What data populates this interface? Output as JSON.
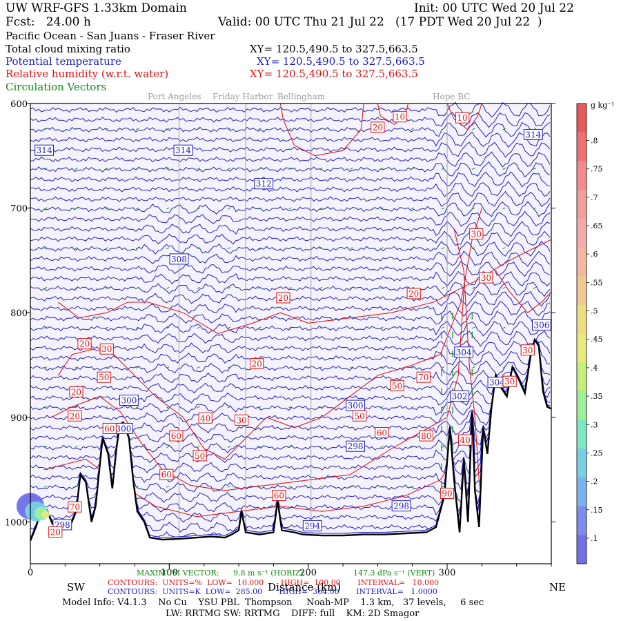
{
  "header": {
    "title": "UW WRF-GFS 1.33km Domain",
    "init": "Init: 00 UTC Wed 20 Jul 22",
    "fcst": "Fcst:   24.00 h",
    "valid": "Valid: 00 UTC Thu 21 Jul 22   (17 PDT Wed 20 Jul 22  )",
    "region": "Pacific Ocean - San Juans - Fraser River",
    "field1": "Total cloud mixing ratio",
    "field2": "Potential temperature",
    "field3": "Relative humidity (w.r.t. water)",
    "field4": "Circulation Vectors",
    "xy1": "XY= 120.5,490.5 to 327.5,663.5",
    "xy2": "XY= 120.5,490.5 to 327.5,663.5",
    "xy3": "XY= 120.5,490.5 to 327.5,663.5"
  },
  "places": [
    "Port Angeles",
    "Friday Harbor",
    "Bellingham",
    "Hope BC"
  ],
  "footer": {
    "max_vector_label": "MAXIMUM VECTOR:",
    "max_vector_h": "9.8 m s⁻¹ (HORIZ)",
    "max_vector_v": "147.3 dPa s⁻¹ (VERT)",
    "rh_contours": "CONTOURS:  UNITS=%  LOW=  10.000       HIGH=  100.00       INTERVAL=   10.000",
    "th_contours": "CONTOURS:  UNITS=K  LOW=  285.00       HIGH=  364.00       INTERVAL=   1.0000",
    "dir_left": "SW",
    "dir_right": "NE",
    "xlabel": "Distance (km)",
    "model_info": "Model Info: V4.1.3    No Cu    YSU PBL  Thompson     Noah-MP    1.3 km,   37 levels,     6 sec",
    "model_info2": "LW: RRTMG SW: RRTMG    DIFF: full    KM: 2D Smagor"
  },
  "colorbar": {
    "unit": "g kg⁻¹",
    "labels": [
      ".8",
      ".75",
      ".7",
      ".65",
      ".6",
      ".55",
      ".5",
      ".45",
      ".4",
      ".35",
      ".3",
      ".25",
      ".2",
      ".15",
      ".1"
    ],
    "colors": [
      "#e65a5a",
      "#f07070",
      "#f58a8a",
      "#f59c9c",
      "#f5aaaa",
      "#f2b8a0",
      "#f0c890",
      "#efdb82",
      "#e8ea7a",
      "#c5ef7a",
      "#9cf09a",
      "#7ce8c0",
      "#78cfe6",
      "#7ab2ee",
      "#7d8cee",
      "#6f6fe8"
    ]
  },
  "chart_data": {
    "type": "contour",
    "xlabel": "Distance (km)",
    "ylabel": "",
    "x_ticks": [
      0,
      100,
      200,
      300
    ],
    "y_ticks": [
      600,
      700,
      800,
      900,
      1000
    ],
    "xlim": [
      0,
      375
    ],
    "ylim": [
      1040,
      600
    ],
    "theta_labels": [
      {
        "value": "314",
        "x": 10,
        "y": 645
      },
      {
        "value": "314",
        "x": 110,
        "y": 645
      },
      {
        "value": "314",
        "x": 362,
        "y": 630
      },
      {
        "value": "312",
        "x": 168,
        "y": 677
      },
      {
        "value": "308",
        "x": 107,
        "y": 749
      },
      {
        "value": "306",
        "x": 368,
        "y": 812
      },
      {
        "value": "304",
        "x": 312,
        "y": 838
      },
      {
        "value": "304",
        "x": 336,
        "y": 867
      },
      {
        "value": "302",
        "x": 309,
        "y": 880
      },
      {
        "value": "300",
        "x": 71,
        "y": 884
      },
      {
        "value": "300",
        "x": 234,
        "y": 889
      },
      {
        "value": "300",
        "x": 67,
        "y": 911
      },
      {
        "value": "298",
        "x": 234,
        "y": 928
      },
      {
        "value": "298",
        "x": 267,
        "y": 985
      },
      {
        "value": "298",
        "x": 23,
        "y": 1003
      },
      {
        "value": "294",
        "x": 203,
        "y": 1004
      }
    ],
    "rh_labels": [
      {
        "value": "20",
        "x": 250,
        "y": 623
      },
      {
        "value": "10",
        "x": 266,
        "y": 613
      },
      {
        "value": "10",
        "x": 311,
        "y": 614
      },
      {
        "value": "30",
        "x": 321,
        "y": 725
      },
      {
        "value": "30",
        "x": 328,
        "y": 767
      },
      {
        "value": "20",
        "x": 182,
        "y": 786
      },
      {
        "value": "20",
        "x": 276,
        "y": 782
      },
      {
        "value": "20",
        "x": 39,
        "y": 830
      },
      {
        "value": "30",
        "x": 55,
        "y": 835
      },
      {
        "value": "20",
        "x": 163,
        "y": 849
      },
      {
        "value": "30",
        "x": 358,
        "y": 836
      },
      {
        "value": "30",
        "x": 345,
        "y": 866
      },
      {
        "value": "50",
        "x": 53,
        "y": 862
      },
      {
        "value": "50",
        "x": 264,
        "y": 870
      },
      {
        "value": "70",
        "x": 283,
        "y": 862
      },
      {
        "value": "20",
        "x": 33,
        "y": 876
      },
      {
        "value": "20",
        "x": 32,
        "y": 899
      },
      {
        "value": "40",
        "x": 126,
        "y": 901
      },
      {
        "value": "30",
        "x": 152,
        "y": 903
      },
      {
        "value": "50",
        "x": 237,
        "y": 899
      },
      {
        "value": "60",
        "x": 57,
        "y": 911
      },
      {
        "value": "60",
        "x": 105,
        "y": 918
      },
      {
        "value": "60",
        "x": 253,
        "y": 915
      },
      {
        "value": "80",
        "x": 285,
        "y": 918
      },
      {
        "value": "40",
        "x": 313,
        "y": 922
      },
      {
        "value": "50",
        "x": 122,
        "y": 937
      },
      {
        "value": "60",
        "x": 98,
        "y": 955
      },
      {
        "value": "60",
        "x": 179,
        "y": 975
      },
      {
        "value": "70",
        "x": 32,
        "y": 986
      },
      {
        "value": "20",
        "x": 18,
        "y": 1010
      },
      {
        "value": "90",
        "x": 300,
        "y": 973
      }
    ]
  }
}
